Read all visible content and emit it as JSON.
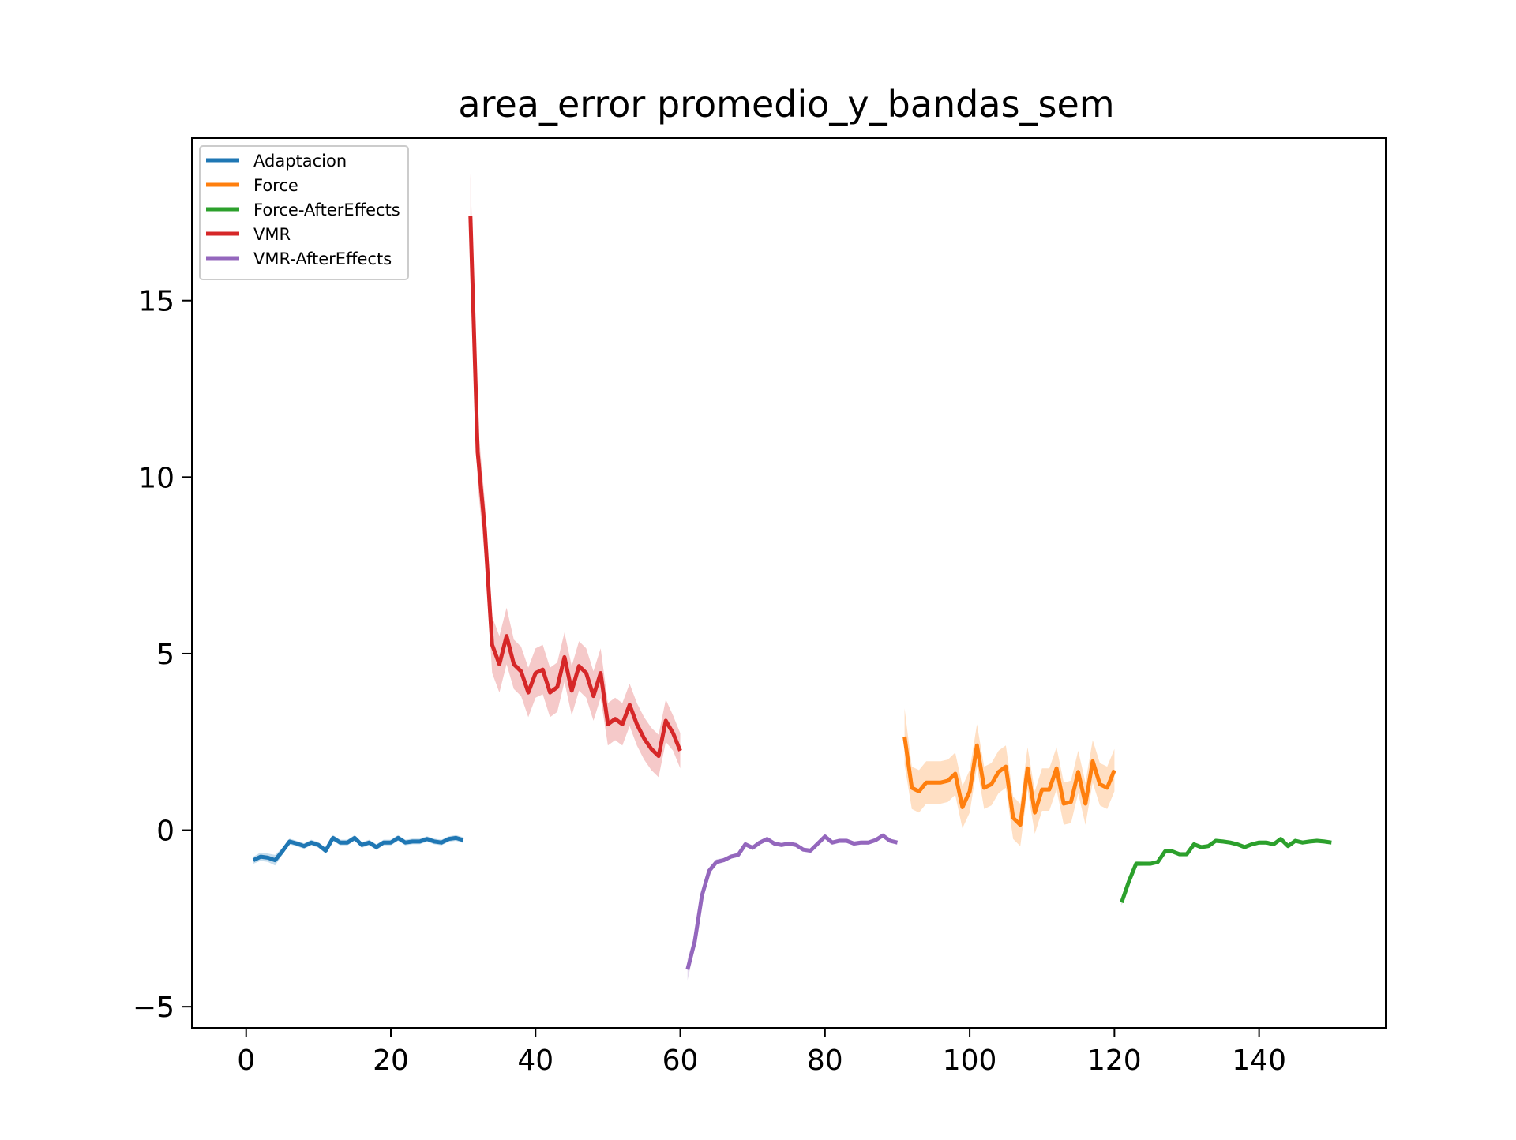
{
  "chart_data": {
    "type": "line",
    "title": "area_error promedio_y_bandas_sem",
    "xlabel": "",
    "ylabel": "",
    "xlim": [
      -7.5,
      157.5
    ],
    "ylim": [
      -5.6,
      19.6
    ],
    "xticks": [
      0,
      20,
      40,
      60,
      80,
      100,
      120,
      140
    ],
    "yticks": [
      -5,
      0,
      5,
      10,
      15
    ],
    "ytick_labels": [
      "−5",
      "0",
      "5",
      "10",
      "15"
    ],
    "grid": false,
    "legend_position": "top-left",
    "series": [
      {
        "name": "Adaptacion",
        "color": "#1f77b4",
        "x": [
          1,
          2,
          3,
          4,
          5,
          6,
          7,
          8,
          9,
          10,
          11,
          12,
          13,
          14,
          15,
          16,
          17,
          18,
          19,
          20,
          21,
          22,
          23,
          24,
          25,
          26,
          27,
          28,
          29,
          30
        ],
        "y": [
          -0.85,
          -0.75,
          -0.78,
          -0.85,
          -0.6,
          -0.32,
          -0.38,
          -0.45,
          -0.35,
          -0.42,
          -0.58,
          -0.22,
          -0.35,
          -0.35,
          -0.22,
          -0.42,
          -0.35,
          -0.48,
          -0.35,
          -0.35,
          -0.22,
          -0.35,
          -0.32,
          -0.32,
          -0.25,
          -0.32,
          -0.35,
          -0.25,
          -0.22,
          -0.28
        ],
        "sem": [
          0.1,
          0.12,
          0.12,
          0.15,
          0.1,
          0.08,
          0.08,
          0.08,
          0.08,
          0.08,
          0.08,
          0.08,
          0.08,
          0.08,
          0.08,
          0.08,
          0.08,
          0.08,
          0.08,
          0.08,
          0.08,
          0.08,
          0.08,
          0.08,
          0.08,
          0.08,
          0.08,
          0.08,
          0.08,
          0.08
        ]
      },
      {
        "name": "Force",
        "color": "#ff7f0e",
        "x": [
          91,
          92,
          93,
          94,
          95,
          96,
          97,
          98,
          99,
          100,
          101,
          102,
          103,
          104,
          105,
          106,
          107,
          108,
          109,
          110,
          111,
          112,
          113,
          114,
          115,
          116,
          117,
          118,
          119,
          120
        ],
        "y": [
          2.65,
          1.2,
          1.1,
          1.35,
          1.35,
          1.35,
          1.4,
          1.6,
          0.65,
          1.1,
          2.4,
          1.2,
          1.3,
          1.65,
          1.8,
          0.35,
          0.15,
          1.75,
          0.5,
          1.15,
          1.15,
          1.75,
          0.75,
          0.8,
          1.65,
          0.75,
          1.95,
          1.3,
          1.2,
          1.7
        ],
        "sem": [
          0.8,
          0.6,
          0.6,
          0.6,
          0.6,
          0.6,
          0.6,
          0.6,
          0.6,
          0.6,
          0.6,
          0.6,
          0.6,
          0.6,
          0.6,
          0.6,
          0.6,
          0.6,
          0.6,
          0.6,
          0.6,
          0.6,
          0.6,
          0.6,
          0.6,
          0.6,
          0.6,
          0.6,
          0.6,
          0.6
        ]
      },
      {
        "name": "Force-AfterEffects",
        "color": "#2ca02c",
        "x": [
          121,
          122,
          123,
          124,
          125,
          126,
          127,
          128,
          129,
          130,
          131,
          132,
          133,
          134,
          135,
          136,
          137,
          138,
          139,
          140,
          141,
          142,
          143,
          144,
          145,
          146,
          147,
          148,
          149,
          150
        ],
        "y": [
          -2.05,
          -1.45,
          -0.95,
          -0.95,
          -0.95,
          -0.9,
          -0.6,
          -0.6,
          -0.68,
          -0.68,
          -0.4,
          -0.48,
          -0.45,
          -0.3,
          -0.32,
          -0.35,
          -0.4,
          -0.48,
          -0.4,
          -0.35,
          -0.35,
          -0.4,
          -0.25,
          -0.45,
          -0.3,
          -0.35,
          -0.32,
          -0.3,
          -0.32,
          -0.35
        ],
        "sem": [
          0.08,
          0.08,
          0.07,
          0.06,
          0.06,
          0.06,
          0.06,
          0.06,
          0.06,
          0.06,
          0.06,
          0.06,
          0.06,
          0.06,
          0.06,
          0.06,
          0.06,
          0.06,
          0.06,
          0.06,
          0.06,
          0.06,
          0.06,
          0.06,
          0.06,
          0.06,
          0.06,
          0.06,
          0.06,
          0.06
        ]
      },
      {
        "name": "VMR",
        "color": "#d62728",
        "x": [
          31,
          32,
          33,
          34,
          35,
          36,
          37,
          38,
          39,
          40,
          41,
          42,
          43,
          44,
          45,
          46,
          47,
          48,
          49,
          50,
          51,
          52,
          53,
          54,
          55,
          56,
          57,
          58,
          59,
          60
        ],
        "y": [
          17.4,
          10.7,
          8.5,
          5.25,
          4.7,
          5.5,
          4.7,
          4.5,
          3.9,
          4.45,
          4.55,
          3.9,
          4.05,
          4.9,
          3.95,
          4.65,
          4.45,
          3.8,
          4.45,
          3.0,
          3.15,
          3.0,
          3.55,
          3.0,
          2.6,
          2.3,
          2.1,
          3.1,
          2.75,
          2.25
        ],
        "sem": [
          1.2,
          0.9,
          0.8,
          0.8,
          0.8,
          0.8,
          0.7,
          0.7,
          0.7,
          0.7,
          0.7,
          0.7,
          0.7,
          0.7,
          0.7,
          0.7,
          0.7,
          0.7,
          0.7,
          0.6,
          0.6,
          0.6,
          0.6,
          0.6,
          0.6,
          0.6,
          0.6,
          0.6,
          0.5,
          0.5
        ]
      },
      {
        "name": "VMR-AfterEffects",
        "color": "#9467bd",
        "x": [
          61,
          62,
          63,
          64,
          65,
          66,
          67,
          68,
          69,
          70,
          71,
          72,
          73,
          74,
          75,
          76,
          77,
          78,
          79,
          80,
          81,
          82,
          83,
          84,
          85,
          86,
          87,
          88,
          89,
          90
        ],
        "y": [
          -3.95,
          -3.15,
          -1.85,
          -1.15,
          -0.9,
          -0.85,
          -0.75,
          -0.7,
          -0.4,
          -0.5,
          -0.35,
          -0.25,
          -0.38,
          -0.42,
          -0.38,
          -0.42,
          -0.55,
          -0.58,
          -0.38,
          -0.18,
          -0.35,
          -0.3,
          -0.3,
          -0.38,
          -0.35,
          -0.35,
          -0.28,
          -0.15,
          -0.3,
          -0.35
        ],
        "sem": [
          0.3,
          0.2,
          0.15,
          0.1,
          0.08,
          0.06,
          0.06,
          0.06,
          0.06,
          0.06,
          0.06,
          0.06,
          0.06,
          0.06,
          0.06,
          0.06,
          0.06,
          0.06,
          0.06,
          0.06,
          0.06,
          0.06,
          0.06,
          0.06,
          0.06,
          0.06,
          0.06,
          0.06,
          0.06,
          0.06
        ]
      }
    ]
  }
}
